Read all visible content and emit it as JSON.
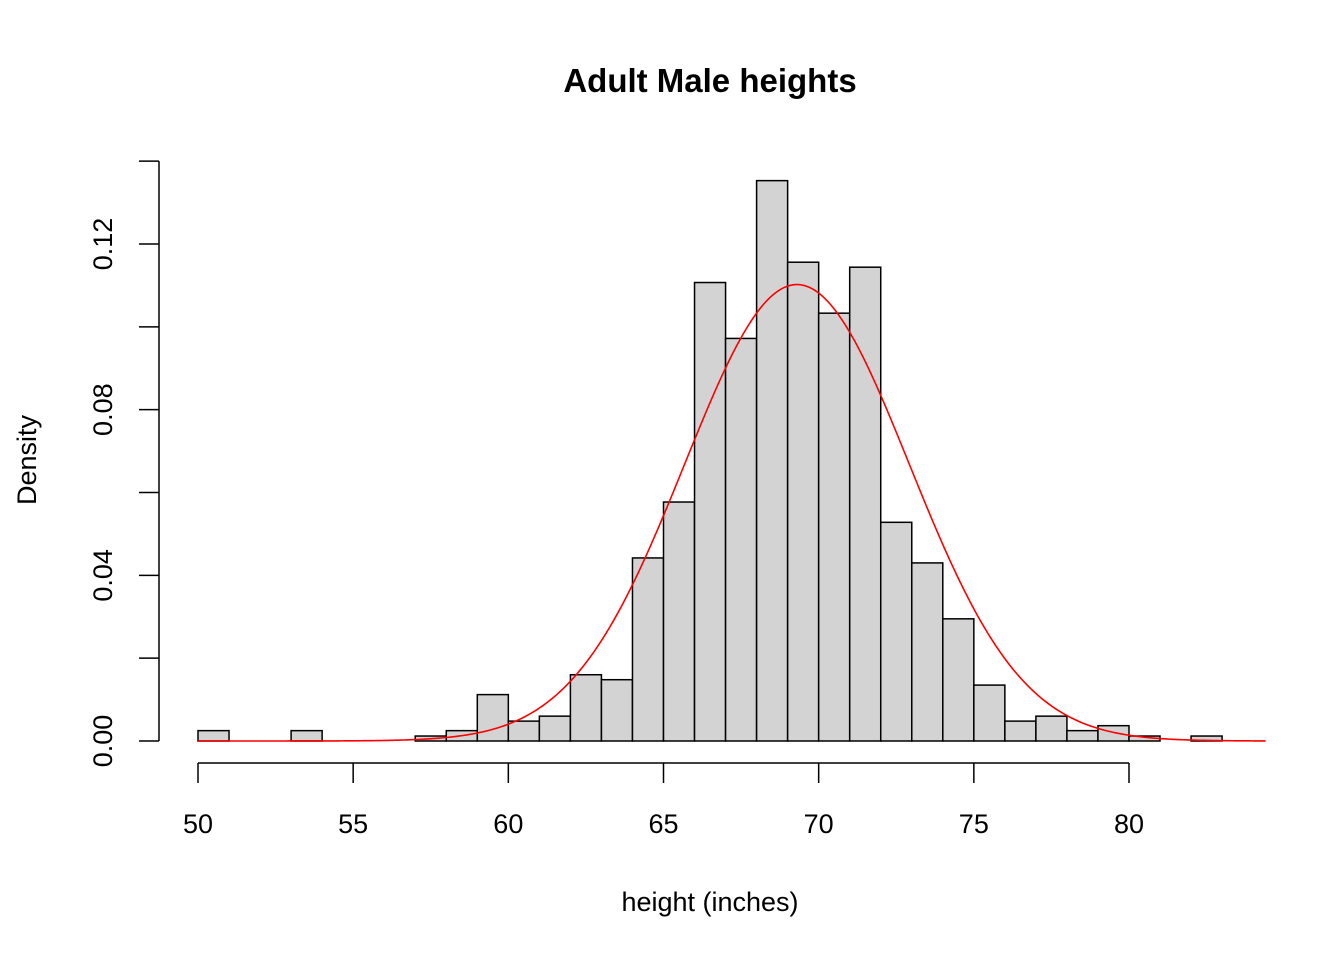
{
  "chart_data": {
    "type": "bar",
    "title": "Adult Male heights",
    "xlabel": "height (inches)",
    "ylabel": "Density",
    "xlim": [
      50,
      84
    ],
    "ylim": [
      0,
      0.14
    ],
    "x_ticks": [
      50,
      55,
      60,
      65,
      70,
      75,
      80
    ],
    "x_tick_labels": [
      "50",
      "55",
      "60",
      "65",
      "70",
      "75",
      "80"
    ],
    "y_ticks": [
      0,
      0.02,
      0.04,
      0.06,
      0.08,
      0.1,
      0.12,
      0.14
    ],
    "y_tick_labels": [
      "0.00",
      "",
      "0.04",
      "",
      "0.08",
      "",
      "0.12",
      ""
    ],
    "bin_width": 1,
    "bins": [
      {
        "start": 50,
        "density": 0.0025
      },
      {
        "start": 53,
        "density": 0.0025
      },
      {
        "start": 57,
        "density": 0.0012
      },
      {
        "start": 58,
        "density": 0.0025
      },
      {
        "start": 59,
        "density": 0.0112
      },
      {
        "start": 60,
        "density": 0.0048
      },
      {
        "start": 61,
        "density": 0.006
      },
      {
        "start": 62,
        "density": 0.016
      },
      {
        "start": 63,
        "density": 0.0148
      },
      {
        "start": 64,
        "density": 0.0442
      },
      {
        "start": 65,
        "density": 0.0577
      },
      {
        "start": 66,
        "density": 0.1107
      },
      {
        "start": 67,
        "density": 0.0972
      },
      {
        "start": 68,
        "density": 0.1353
      },
      {
        "start": 69,
        "density": 0.1156
      },
      {
        "start": 70,
        "density": 0.1033
      },
      {
        "start": 71,
        "density": 0.1144
      },
      {
        "start": 72,
        "density": 0.0528
      },
      {
        "start": 73,
        "density": 0.043
      },
      {
        "start": 74,
        "density": 0.0295
      },
      {
        "start": 75,
        "density": 0.0135
      },
      {
        "start": 76,
        "density": 0.0048
      },
      {
        "start": 77,
        "density": 0.006
      },
      {
        "start": 78,
        "density": 0.0025
      },
      {
        "start": 79,
        "density": 0.0037
      },
      {
        "start": 80,
        "density": 0.0012
      },
      {
        "start": 82,
        "density": 0.0012
      }
    ],
    "density_curve": {
      "type": "normal",
      "mean": 69.3,
      "sd": 3.62,
      "x_range": [
        50,
        84.4
      ]
    },
    "colors": {
      "bar_fill": "#d3d3d3",
      "bar_stroke": "#000000",
      "curve": "#ff0000"
    },
    "grid": false,
    "legend": "none"
  }
}
